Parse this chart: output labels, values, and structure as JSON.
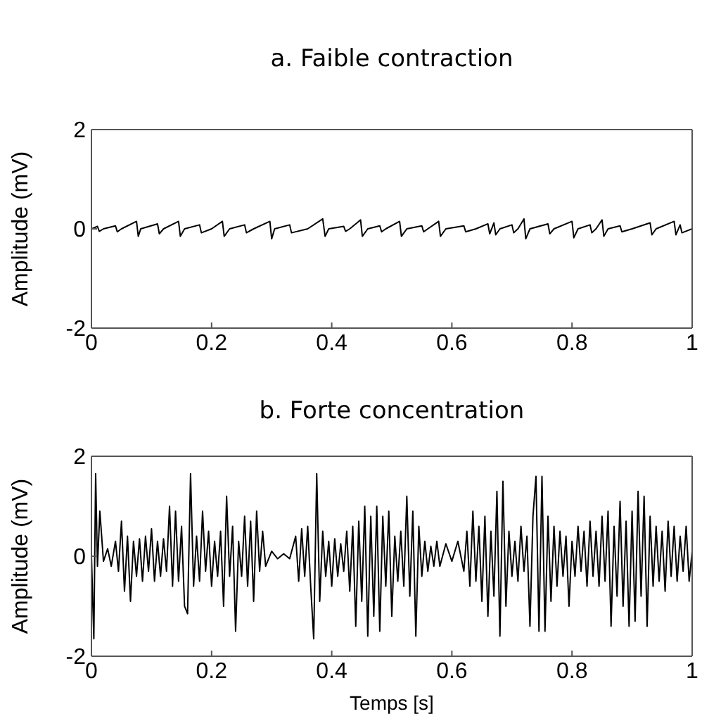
{
  "chart_data": [
    {
      "type": "line",
      "title": "a. Faible contraction",
      "ylabel": "Amplitude (mV)",
      "xlim": [
        0,
        1
      ],
      "ylim": [
        -2,
        2
      ],
      "xticks": [
        0,
        0.2,
        0.4,
        0.6,
        0.8,
        1
      ],
      "yticks": [
        -2,
        0,
        2
      ],
      "series": [
        {
          "color": "#000000",
          "x": [
            0,
            0.01,
            0.013,
            0.02,
            0.04,
            0.043,
            0.05,
            0.075,
            0.078,
            0.082,
            0.11,
            0.113,
            0.12,
            0.145,
            0.148,
            0.155,
            0.18,
            0.183,
            0.2,
            0.218,
            0.221,
            0.23,
            0.255,
            0.258,
            0.27,
            0.297,
            0.3,
            0.305,
            0.33,
            0.333,
            0.36,
            0.385,
            0.389,
            0.395,
            0.42,
            0.423,
            0.43,
            0.448,
            0.451,
            0.46,
            0.48,
            0.483,
            0.49,
            0.513,
            0.516,
            0.525,
            0.55,
            0.553,
            0.56,
            0.578,
            0.581,
            0.59,
            0.62,
            0.623,
            0.64,
            0.66,
            0.663,
            0.67,
            0.673,
            0.68,
            0.7,
            0.703,
            0.71,
            0.72,
            0.723,
            0.73,
            0.76,
            0.763,
            0.77,
            0.8,
            0.803,
            0.81,
            0.83,
            0.833,
            0.84,
            0.85,
            0.853,
            0.86,
            0.88,
            0.883,
            0.9,
            0.93,
            0.933,
            0.94,
            0.97,
            0.973,
            0.98,
            0.983,
            1
          ],
          "values": [
            0,
            0.05,
            -0.05,
            0,
            0.06,
            -0.06,
            0,
            0.15,
            -0.15,
            0,
            0.1,
            -0.1,
            0,
            0.15,
            -0.15,
            0,
            0.08,
            -0.08,
            0,
            0.15,
            -0.15,
            0,
            0.08,
            -0.08,
            0,
            0.15,
            -0.2,
            0,
            0.08,
            -0.08,
            0,
            0.2,
            -0.15,
            0,
            0.05,
            -0.05,
            0,
            0.18,
            -0.15,
            0,
            0.06,
            -0.06,
            0,
            0.15,
            -0.15,
            0,
            0.06,
            -0.06,
            0,
            0.15,
            -0.15,
            0,
            0.06,
            -0.06,
            0,
            0.1,
            -0.1,
            0.12,
            -0.12,
            0,
            0.08,
            -0.08,
            0,
            0.2,
            -0.2,
            0,
            0.1,
            -0.1,
            0,
            0.15,
            -0.18,
            0,
            0.08,
            -0.08,
            0,
            0.18,
            -0.15,
            0,
            0.06,
            -0.06,
            0,
            0.12,
            -0.12,
            0,
            0.15,
            -0.12,
            0.08,
            -0.08,
            0
          ]
        }
      ]
    },
    {
      "type": "line",
      "title": "b. Forte concentration",
      "xlabel": "Temps [s]",
      "ylabel": "Amplitude (mV)",
      "xlim": [
        0,
        1
      ],
      "ylim": [
        -2,
        2
      ],
      "xticks": [
        0,
        0.2,
        0.4,
        0.6,
        0.8,
        1
      ],
      "yticks": [
        -2,
        0,
        2
      ],
      "series": [
        {
          "color": "#000000",
          "x": [
            0,
            0.004,
            0.007,
            0.01,
            0.014,
            0.02,
            0.027,
            0.033,
            0.04,
            0.045,
            0.05,
            0.055,
            0.06,
            0.065,
            0.07,
            0.075,
            0.08,
            0.085,
            0.09,
            0.095,
            0.1,
            0.105,
            0.11,
            0.115,
            0.12,
            0.125,
            0.13,
            0.135,
            0.14,
            0.145,
            0.15,
            0.155,
            0.16,
            0.165,
            0.17,
            0.175,
            0.18,
            0.185,
            0.19,
            0.195,
            0.2,
            0.205,
            0.21,
            0.215,
            0.22,
            0.225,
            0.23,
            0.235,
            0.24,
            0.245,
            0.25,
            0.255,
            0.26,
            0.265,
            0.27,
            0.275,
            0.28,
            0.285,
            0.29,
            0.3,
            0.31,
            0.32,
            0.33,
            0.34,
            0.345,
            0.35,
            0.355,
            0.36,
            0.365,
            0.37,
            0.375,
            0.38,
            0.385,
            0.39,
            0.395,
            0.4,
            0.405,
            0.41,
            0.415,
            0.42,
            0.425,
            0.43,
            0.435,
            0.44,
            0.445,
            0.45,
            0.455,
            0.46,
            0.465,
            0.47,
            0.475,
            0.48,
            0.485,
            0.49,
            0.495,
            0.5,
            0.505,
            0.51,
            0.515,
            0.52,
            0.525,
            0.53,
            0.535,
            0.54,
            0.545,
            0.55,
            0.555,
            0.56,
            0.565,
            0.57,
            0.575,
            0.58,
            0.59,
            0.6,
            0.61,
            0.62,
            0.625,
            0.63,
            0.635,
            0.64,
            0.645,
            0.65,
            0.655,
            0.66,
            0.665,
            0.67,
            0.675,
            0.68,
            0.685,
            0.69,
            0.695,
            0.7,
            0.705,
            0.71,
            0.715,
            0.72,
            0.725,
            0.73,
            0.735,
            0.74,
            0.745,
            0.75,
            0.755,
            0.76,
            0.765,
            0.77,
            0.775,
            0.78,
            0.785,
            0.79,
            0.795,
            0.8,
            0.805,
            0.81,
            0.815,
            0.82,
            0.825,
            0.83,
            0.835,
            0.84,
            0.845,
            0.85,
            0.855,
            0.86,
            0.865,
            0.87,
            0.875,
            0.88,
            0.885,
            0.89,
            0.895,
            0.9,
            0.905,
            0.91,
            0.915,
            0.92,
            0.925,
            0.93,
            0.935,
            0.94,
            0.945,
            0.95,
            0.955,
            0.96,
            0.965,
            0.97,
            0.975,
            0.98,
            0.985,
            0.99,
            0.995,
            1
          ],
          "values": [
            0,
            -1.65,
            1.65,
            -0.2,
            0.9,
            -0.1,
            0.15,
            -0.2,
            0.3,
            -0.3,
            0.7,
            -0.7,
            0.4,
            -0.9,
            0.3,
            -0.4,
            0.35,
            -0.5,
            0.4,
            -0.3,
            0.55,
            -0.5,
            0.3,
            -0.4,
            0.35,
            -0.3,
            1.0,
            -0.6,
            0.9,
            -0.5,
            0.6,
            -1.0,
            -1.15,
            1.65,
            -0.6,
            0.4,
            -0.5,
            0.9,
            -0.3,
            0.5,
            -0.6,
            0.3,
            -0.4,
            0.5,
            -1.0,
            1.2,
            -0.4,
            0.6,
            -1.5,
            0.3,
            -0.4,
            0.8,
            -0.6,
            0.7,
            -0.9,
            0.9,
            -0.3,
            0.5,
            -0.2,
            0.1,
            -0.05,
            0.05,
            -0.05,
            0.4,
            -0.5,
            0.55,
            -0.4,
            0.6,
            -0.6,
            -1.65,
            1.65,
            -0.9,
            0.5,
            -0.4,
            0.3,
            -0.6,
            0.35,
            -0.4,
            0.25,
            -0.3,
            0.5,
            -0.7,
            0.6,
            -1.4,
            0.7,
            -0.9,
            1.0,
            -1.6,
            0.8,
            -1.2,
            1.0,
            -1.5,
            0.8,
            -0.6,
            0.9,
            -1.2,
            0.4,
            -0.5,
            0.5,
            -0.6,
            1.2,
            -0.8,
            0.9,
            -1.6,
            0.6,
            -0.4,
            0.3,
            -0.3,
            0.2,
            -0.2,
            0.3,
            -0.2,
            0.25,
            -0.1,
            0.3,
            -0.3,
            0.5,
            -0.6,
            0.9,
            -0.5,
            0.6,
            -0.9,
            0.8,
            -1.2,
            0.5,
            -0.8,
            1.3,
            -1.6,
            1.5,
            -1.0,
            0.5,
            -0.4,
            0.3,
            -0.5,
            0.6,
            -0.3,
            0.4,
            -1.4,
            0.8,
            1.6,
            -1.5,
            1.6,
            -1.5,
            0.8,
            -0.9,
            0.6,
            -0.6,
            0.5,
            -0.4,
            0.4,
            -1.0,
            0.3,
            -0.4,
            0.6,
            -0.3,
            0.5,
            -0.6,
            0.7,
            -0.4,
            0.5,
            -0.6,
            0.8,
            -0.5,
            0.9,
            -1.4,
            0.6,
            -0.8,
            1.1,
            -1.0,
            0.7,
            -1.4,
            0.9,
            -1.3,
            1.3,
            -0.8,
            1.2,
            -1.4,
            0.8,
            -0.6,
            0.6,
            -0.5,
            0.5,
            -0.7,
            0.7,
            -0.4,
            0.6,
            -0.5,
            0.4,
            -0.3,
            0.6,
            -0.5,
            0.1
          ]
        }
      ]
    }
  ]
}
